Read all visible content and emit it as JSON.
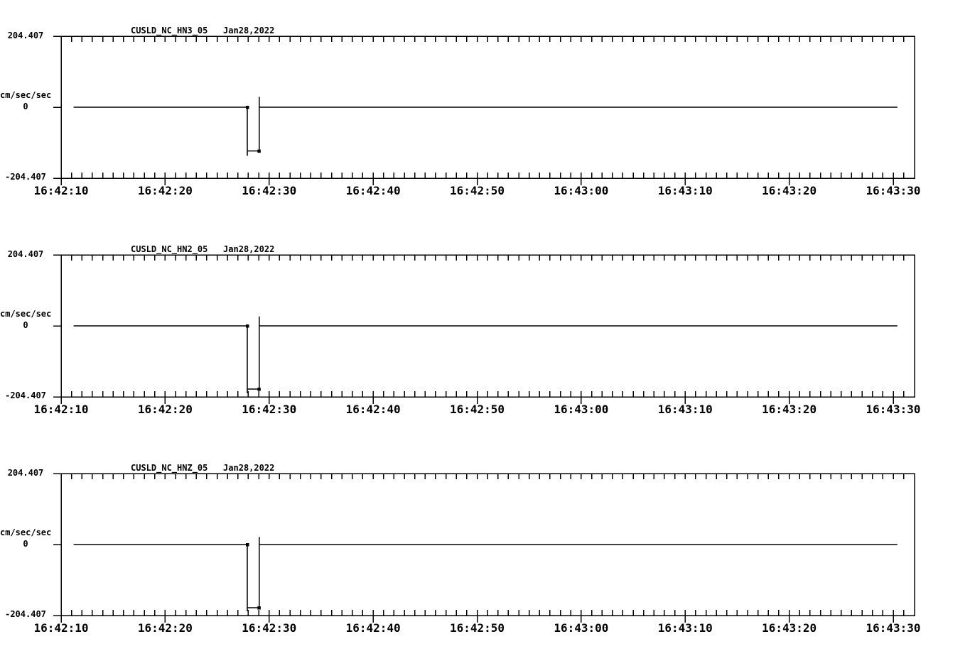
{
  "page": {
    "background_color": "#ffffff",
    "line_color": "#000000"
  },
  "chart_data": [
    {
      "type": "line",
      "title": "CUSLD_NC_HN3_05   Jan28,2022",
      "station": "CUSLD_NC_HN3_05",
      "date": "Jan28,2022",
      "ylabel": "cm/sec/sec",
      "y_max_label": "204.407",
      "y_zero_label": "0",
      "y_min_label": "-204.407",
      "ylim": [
        -204.407,
        204.407
      ],
      "xticks": [
        "16:42:10",
        "16:42:20",
        "16:42:30",
        "16:42:40",
        "16:42:50",
        "16:43:00",
        "16:43:10",
        "16:43:20",
        "16:43:30"
      ],
      "x_major_step_s": 10,
      "x_minor_step_s": 1,
      "grid": false,
      "trace": {
        "baseline_value": 0,
        "start_s": 1.2,
        "end_s": 80.4,
        "pulse": {
          "fall_s": 17.9,
          "rise_s": 19.05,
          "floor_value": -126,
          "min_value": -140,
          "overshoot_value": 30
        }
      }
    },
    {
      "type": "line",
      "title": "CUSLD_NC_HN2_05   Jan28,2022",
      "station": "CUSLD_NC_HN2_05",
      "date": "Jan28,2022",
      "ylabel": "cm/sec/sec",
      "y_max_label": "204.407",
      "y_zero_label": "0",
      "y_min_label": "-204.407",
      "ylim": [
        -204.407,
        204.407
      ],
      "xticks": [
        "16:42:10",
        "16:42:20",
        "16:42:30",
        "16:42:40",
        "16:42:50",
        "16:43:00",
        "16:43:10",
        "16:43:20",
        "16:43:30"
      ],
      "x_major_step_s": 10,
      "x_minor_step_s": 1,
      "grid": false,
      "trace": {
        "baseline_value": 0,
        "start_s": 1.2,
        "end_s": 80.4,
        "pulse": {
          "fall_s": 17.9,
          "rise_s": 19.05,
          "floor_value": -182,
          "min_value": -194,
          "overshoot_value": 27
        }
      }
    },
    {
      "type": "line",
      "title": "CUSLD_NC_HNZ_05   Jan28,2022",
      "station": "CUSLD_NC_HNZ_05",
      "date": "Jan28,2022",
      "ylabel": "cm/sec/sec",
      "y_max_label": "204.407",
      "y_zero_label": "0",
      "y_min_label": "-204.407",
      "ylim": [
        -204.407,
        204.407
      ],
      "xticks": [
        "16:42:10",
        "16:42:20",
        "16:42:30",
        "16:42:40",
        "16:42:50",
        "16:43:00",
        "16:43:10",
        "16:43:20",
        "16:43:30"
      ],
      "x_major_step_s": 10,
      "x_minor_step_s": 1,
      "grid": false,
      "trace": {
        "baseline_value": 0,
        "start_s": 1.2,
        "end_s": 80.4,
        "pulse": {
          "fall_s": 17.9,
          "rise_s": 19.05,
          "floor_value": -182,
          "min_value": -192,
          "overshoot_value": 22
        }
      }
    }
  ]
}
